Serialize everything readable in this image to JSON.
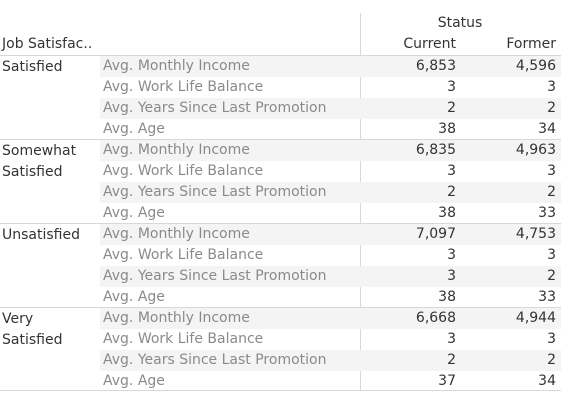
{
  "header": {
    "column_group_title": "Status",
    "row_header_title": "Job Satisfac..",
    "columns": [
      "Current",
      "Former"
    ]
  },
  "groups": [
    {
      "label": "Satisfied",
      "rows": [
        {
          "measure": "Avg. Monthly Income",
          "current": "6,853",
          "former": "4,596"
        },
        {
          "measure": "Avg. Work Life Balance",
          "current": "3",
          "former": "3"
        },
        {
          "measure": "Avg. Years Since Last Promotion",
          "current": "2",
          "former": "2"
        },
        {
          "measure": "Avg. Age",
          "current": "38",
          "former": "34"
        }
      ]
    },
    {
      "label": "Somewhat Satisfied",
      "rows": [
        {
          "measure": "Avg. Monthly Income",
          "current": "6,835",
          "former": "4,963"
        },
        {
          "measure": "Avg. Work Life Balance",
          "current": "3",
          "former": "3"
        },
        {
          "measure": "Avg. Years Since Last Promotion",
          "current": "2",
          "former": "2"
        },
        {
          "measure": "Avg. Age",
          "current": "38",
          "former": "33"
        }
      ]
    },
    {
      "label": "Unsatisfied",
      "rows": [
        {
          "measure": "Avg. Monthly Income",
          "current": "7,097",
          "former": "4,753"
        },
        {
          "measure": "Avg. Work Life Balance",
          "current": "3",
          "former": "3"
        },
        {
          "measure": "Avg. Years Since Last Promotion",
          "current": "3",
          "former": "2"
        },
        {
          "measure": "Avg. Age",
          "current": "38",
          "former": "33"
        }
      ]
    },
    {
      "label": "Very Satisfied",
      "rows": [
        {
          "measure": "Avg. Monthly Income",
          "current": "6,668",
          "former": "4,944"
        },
        {
          "measure": "Avg. Work Life Balance",
          "current": "3",
          "former": "3"
        },
        {
          "measure": "Avg. Years Since Last Promotion",
          "current": "2",
          "former": "2"
        },
        {
          "measure": "Avg. Age",
          "current": "37",
          "former": "34"
        }
      ]
    }
  ]
}
